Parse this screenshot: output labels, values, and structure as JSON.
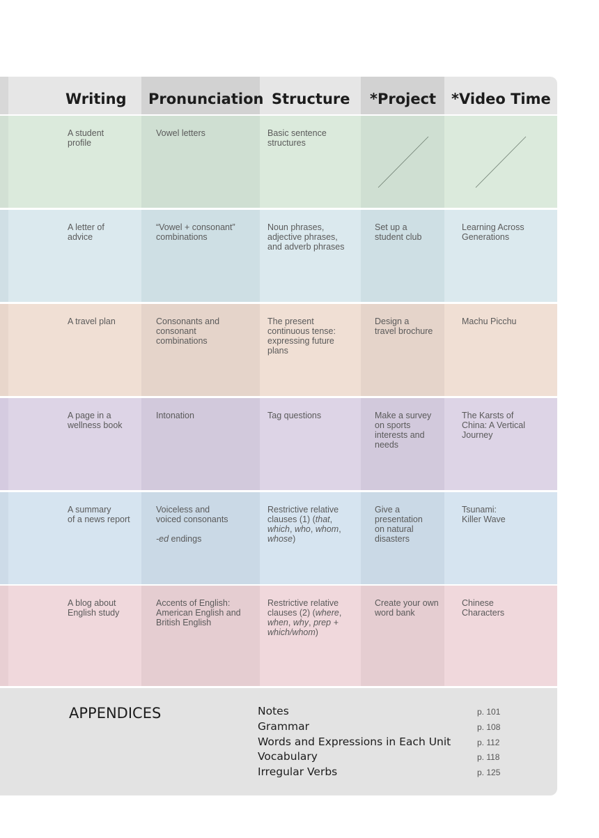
{
  "header": {
    "writing": "Writing",
    "pronunciation": "Pronunciation",
    "structure": "Structure",
    "project": "*Project",
    "video": "*Video Time"
  },
  "rows": [
    {
      "writing": "A student\nprofile",
      "pronunciation": "Vowel letters",
      "structure": "Basic sentence\nstructures",
      "project": "",
      "video": "",
      "colors": {
        "base": "#dbeadc",
        "dark": "#cfdfd2",
        "edge": "#d2e0d4"
      }
    },
    {
      "writing": "A letter of\nadvice",
      "pronunciation": "“Vowel + consonant”\ncombinations",
      "structure": "Noun phrases,\nadjective phrases,\nand adverb phrases",
      "project": "Set up a\nstudent club",
      "video": "Learning Across\nGenerations",
      "colors": {
        "base": "#dbe9ee",
        "dark": "#cedfe4",
        "edge": "#d0dfe5"
      }
    },
    {
      "writing": "A travel plan",
      "pronunciation": "Consonants and\nconsonant\ncombinations",
      "structure": "The present\ncontinuous tense:\nexpressing future\nplans",
      "project": "Design a\ntravel brochure",
      "video": "Machu Picchu",
      "colors": {
        "base": "#f0dfd4",
        "dark": "#e5d4ca",
        "edge": "#e8d6cb"
      }
    },
    {
      "writing": "A page in a\nwellness book",
      "pronunciation": "Intonation",
      "structure": "Tag questions",
      "project": "Make a survey\non sports\ninterests and\nneeds",
      "video": "The Karsts of\nChina: A Vertical\nJourney",
      "colors": {
        "base": "#ddd4e6",
        "dark": "#d2c9dc",
        "edge": "#d5cbe0"
      }
    },
    {
      "writing": "A summary\nof a news report",
      "pronunciation": "Voiceless and\nvoiced consonants",
      "pronunciation_extra": "endings",
      "pronunciation_extra_em": "-ed",
      "structure_html": true,
      "structure": "Restrictive relative clauses (1) (that, which, who, whom, whose)",
      "project": "Give a\npresentation\non natural\ndisasters",
      "video": "Tsunami:\nKiller Wave",
      "colors": {
        "base": "#d6e4f0",
        "dark": "#cad9e6",
        "edge": "#cddbe8"
      }
    },
    {
      "writing": "A blog about\nEnglish study",
      "pronunciation": "Accents of English:\nAmerican English and\nBritish English",
      "structure_html": true,
      "structure": "Restrictive relative clauses (2) (where, when, why, prep + which/whom)",
      "project": "Create your own\nword bank",
      "video": "Chinese\nCharacters",
      "colors": {
        "base": "#f0d8dc",
        "dark": "#e5cdd1",
        "edge": "#e8cfd3"
      }
    }
  ],
  "appendices": {
    "title": "APPENDICES",
    "items": [
      {
        "label": "Notes",
        "page": "p. 101"
      },
      {
        "label": "Grammar",
        "page": "p. 108"
      },
      {
        "label": "Words and Expressions in Each Unit",
        "page": "p. 112"
      },
      {
        "label": "Vocabulary",
        "page": "p. 118"
      },
      {
        "label": "Irregular Verbs",
        "page": "p. 125"
      }
    ]
  }
}
